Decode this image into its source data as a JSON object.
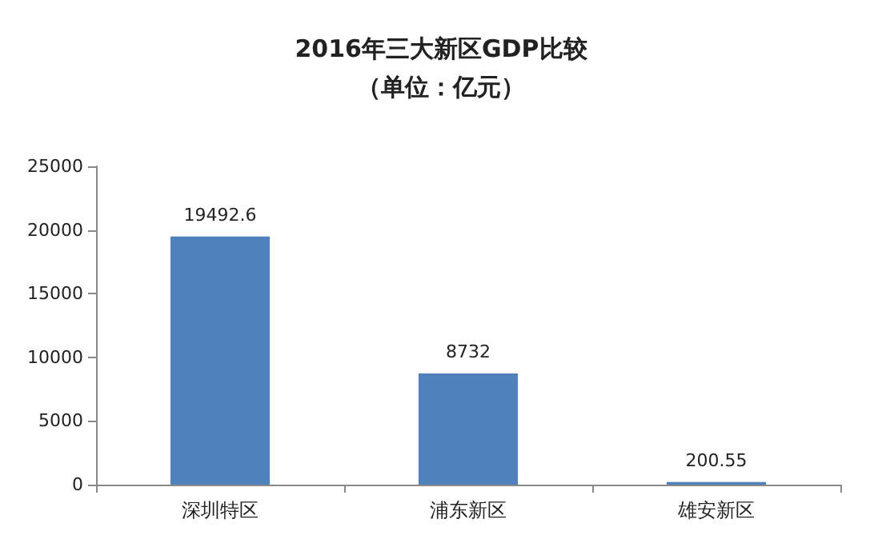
{
  "chart_data": {
    "type": "bar",
    "title": "2016年三大新区GDP比较",
    "subtitle": "（单位：亿元）",
    "categories": [
      "深圳特区",
      "浦东新区",
      "雄安新区"
    ],
    "values": [
      19492.6,
      8732,
      200.55
    ],
    "color": "#4f81bd",
    "ylim": [
      0,
      25000
    ],
    "yticks": [
      0,
      5000,
      10000,
      15000,
      20000,
      25000
    ],
    "grid": false,
    "data_labels": true
  }
}
